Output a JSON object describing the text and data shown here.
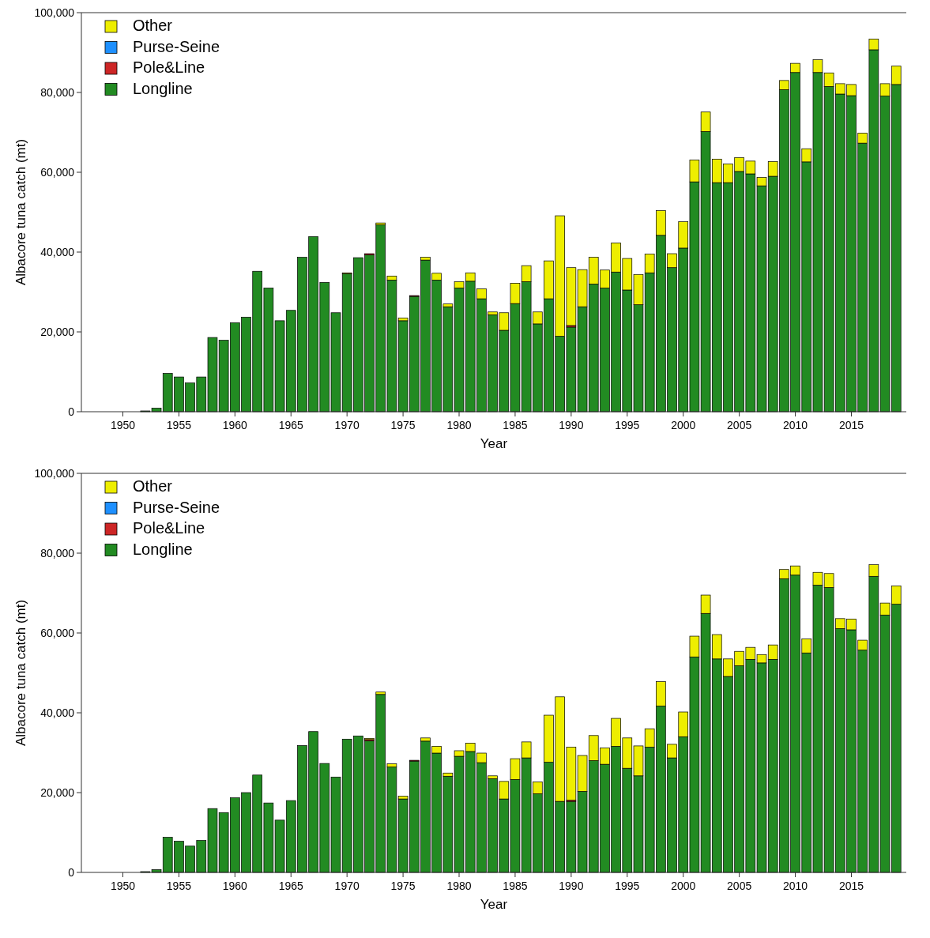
{
  "chart_data": [
    {
      "type": "bar",
      "stacked": true,
      "xlabel": "Year",
      "ylabel": "Albacore tuna catch (mt)",
      "legend": "top left",
      "x": [
        1950,
        1951,
        1952,
        1953,
        1954,
        1955,
        1956,
        1957,
        1958,
        1959,
        1960,
        1961,
        1962,
        1963,
        1964,
        1965,
        1966,
        1967,
        1968,
        1969,
        1970,
        1971,
        1972,
        1973,
        1974,
        1975,
        1976,
        1977,
        1978,
        1979,
        1980,
        1981,
        1982,
        1983,
        1984,
        1985,
        1986,
        1987,
        1988,
        1989,
        1990,
        1991,
        1992,
        1993,
        1994,
        1995,
        1996,
        1997,
        1998,
        1999,
        2000,
        2001,
        2002,
        2003,
        2004,
        2005,
        2006,
        2007,
        2008,
        2009,
        2010,
        2011,
        2012,
        2013,
        2014,
        2015,
        2016,
        2017,
        2018,
        2019
      ],
      "xlim": [
        1946.3,
        2019.9
      ],
      "xticks": [
        1950,
        1955,
        1960,
        1965,
        1970,
        1975,
        1980,
        1985,
        1990,
        1995,
        2000,
        2005,
        2010,
        2015
      ],
      "ylim": [
        0,
        100000
      ],
      "yticks": [
        0,
        {
          "value": 20000,
          "label": "20,000"
        },
        {
          "value": 40000,
          "label": "40,000"
        },
        {
          "value": 60000,
          "label": "60,000"
        },
        {
          "value": 80000,
          "label": "80,000"
        },
        {
          "value": 100000,
          "label": "100,000"
        }
      ],
      "series": [
        {
          "name": "Longline",
          "color": "#228b22",
          "values": [
            0,
            0,
            200,
            900,
            9600,
            8700,
            7200,
            8700,
            18600,
            17900,
            22300,
            23700,
            35200,
            31000,
            22800,
            25400,
            38700,
            43900,
            32400,
            24800,
            34600,
            38600,
            39300,
            46800,
            33000,
            22800,
            28900,
            38000,
            33000,
            26300,
            31000,
            32700,
            28300,
            24300,
            20400,
            27100,
            32600,
            22000,
            28300,
            18900,
            21200,
            26300,
            32000,
            31000,
            35000,
            30500,
            26800,
            34800,
            44200,
            36100,
            41000,
            57600,
            70200,
            57400,
            57400,
            60200,
            59600,
            56600,
            59000,
            80700,
            85000,
            62600,
            85000,
            81500,
            79600,
            79200,
            67300,
            90700,
            79100,
            82000
          ]
        },
        {
          "name": "Pole&Line",
          "color": "#cd2626",
          "values": [
            0,
            0,
            0,
            0,
            0,
            0,
            0,
            0,
            0,
            0,
            0,
            0,
            0,
            0,
            0,
            0,
            0,
            0,
            0,
            0,
            0,
            0,
            300,
            0,
            0,
            0,
            200,
            0,
            0,
            0,
            0,
            0,
            0,
            0,
            0,
            0,
            0,
            0,
            0,
            0,
            400,
            0,
            0,
            0,
            0,
            0,
            0,
            0,
            0,
            0,
            0,
            0,
            0,
            0,
            0,
            0,
            0,
            0,
            0,
            0,
            0,
            0,
            0,
            0,
            0,
            0,
            0,
            0,
            0,
            0
          ]
        },
        {
          "name": "Purse-Seine",
          "color": "#1e90ff",
          "values": [
            0,
            0,
            0,
            0,
            0,
            0,
            0,
            0,
            0,
            0,
            0,
            0,
            0,
            0,
            0,
            0,
            0,
            0,
            0,
            0,
            0,
            0,
            0,
            0,
            0,
            0,
            0,
            0,
            0,
            0,
            0,
            0,
            0,
            0,
            0,
            0,
            0,
            0,
            0,
            0,
            0,
            0,
            0,
            0,
            0,
            0,
            0,
            0,
            0,
            0,
            0,
            0,
            0,
            0,
            0,
            0,
            0,
            0,
            0,
            0,
            0,
            0,
            0,
            0,
            0,
            0,
            0,
            0,
            0,
            0
          ]
        },
        {
          "name": "Other",
          "color": "#eeee00",
          "values": [
            0,
            0,
            0,
            0,
            0,
            0,
            0,
            0,
            0,
            0,
            0,
            0,
            0,
            0,
            0,
            0,
            0,
            0,
            0,
            0,
            200,
            0,
            0,
            500,
            1000,
            700,
            0,
            700,
            1700,
            700,
            1600,
            2100,
            2500,
            700,
            4400,
            5100,
            4000,
            3000,
            9500,
            30200,
            14500,
            9300,
            6700,
            4500,
            7300,
            7900,
            7600,
            4700,
            6200,
            3500,
            6600,
            5500,
            4900,
            5900,
            4700,
            3500,
            3200,
            2100,
            3700,
            2300,
            2300,
            3300,
            3200,
            3400,
            2600,
            2800,
            2500,
            2700,
            3100,
            4600
          ]
        }
      ]
    },
    {
      "type": "bar",
      "stacked": true,
      "xlabel": "Year",
      "ylabel": "Albacore tuna catch (mt)",
      "legend": "top left",
      "x": [
        1950,
        1951,
        1952,
        1953,
        1954,
        1955,
        1956,
        1957,
        1958,
        1959,
        1960,
        1961,
        1962,
        1963,
        1964,
        1965,
        1966,
        1967,
        1968,
        1969,
        1970,
        1971,
        1972,
        1973,
        1974,
        1975,
        1976,
        1977,
        1978,
        1979,
        1980,
        1981,
        1982,
        1983,
        1984,
        1985,
        1986,
        1987,
        1988,
        1989,
        1990,
        1991,
        1992,
        1993,
        1994,
        1995,
        1996,
        1997,
        1998,
        1999,
        2000,
        2001,
        2002,
        2003,
        2004,
        2005,
        2006,
        2007,
        2008,
        2009,
        2010,
        2011,
        2012,
        2013,
        2014,
        2015,
        2016,
        2017,
        2018,
        2019
      ],
      "xlim": [
        1946.3,
        2019.9
      ],
      "xticks": [
        1950,
        1955,
        1960,
        1965,
        1970,
        1975,
        1980,
        1985,
        1990,
        1995,
        2000,
        2005,
        2010,
        2015
      ],
      "ylim": [
        0,
        100000
      ],
      "yticks": [
        0,
        {
          "value": 20000,
          "label": "20,000"
        },
        {
          "value": 40000,
          "label": "40,000"
        },
        {
          "value": 60000,
          "label": "60,000"
        },
        {
          "value": 80000,
          "label": "80,000"
        },
        {
          "value": 100000,
          "label": "100,000"
        }
      ],
      "series": [
        {
          "name": "Longline",
          "color": "#228b22",
          "values": [
            0,
            0,
            200,
            700,
            8800,
            7800,
            6600,
            8000,
            16000,
            15000,
            18700,
            20000,
            24400,
            17400,
            13100,
            18000,
            31800,
            35300,
            27300,
            23900,
            33400,
            34200,
            33000,
            44600,
            26400,
            18400,
            27900,
            32900,
            29900,
            24100,
            29100,
            30300,
            27500,
            23500,
            18400,
            23300,
            28700,
            19700,
            27600,
            17800,
            17800,
            20300,
            28000,
            27100,
            31600,
            26100,
            24200,
            31400,
            41700,
            28700,
            34000,
            54000,
            64900,
            53500,
            49100,
            51800,
            53400,
            52500,
            53400,
            73600,
            74500,
            55000,
            72000,
            71400,
            61100,
            60800,
            55700,
            74200,
            64500,
            67200
          ]
        },
        {
          "name": "Pole&Line",
          "color": "#cd2626",
          "values": [
            0,
            0,
            0,
            0,
            0,
            0,
            0,
            0,
            0,
            0,
            0,
            0,
            0,
            0,
            0,
            0,
            0,
            0,
            0,
            0,
            0,
            0,
            300,
            0,
            0,
            0,
            200,
            0,
            0,
            0,
            0,
            0,
            0,
            0,
            0,
            0,
            0,
            0,
            0,
            0,
            300,
            0,
            0,
            0,
            0,
            0,
            0,
            0,
            0,
            0,
            0,
            0,
            0,
            0,
            0,
            0,
            0,
            0,
            0,
            0,
            0,
            0,
            0,
            0,
            0,
            0,
            0,
            0,
            0,
            0
          ]
        },
        {
          "name": "Purse-Seine",
          "color": "#1e90ff",
          "values": [
            0,
            0,
            0,
            0,
            0,
            0,
            0,
            0,
            0,
            0,
            0,
            0,
            0,
            0,
            0,
            0,
            0,
            0,
            0,
            0,
            0,
            0,
            0,
            0,
            0,
            0,
            0,
            0,
            0,
            0,
            0,
            0,
            0,
            0,
            0,
            0,
            0,
            0,
            0,
            0,
            0,
            0,
            0,
            0,
            0,
            0,
            0,
            0,
            0,
            0,
            0,
            0,
            0,
            0,
            0,
            0,
            0,
            0,
            0,
            0,
            0,
            0,
            0,
            0,
            0,
            0,
            0,
            0,
            0,
            0
          ]
        },
        {
          "name": "Other",
          "color": "#eeee00",
          "values": [
            0,
            0,
            0,
            0,
            0,
            0,
            0,
            0,
            0,
            0,
            0,
            0,
            0,
            0,
            0,
            0,
            0,
            0,
            0,
            0,
            0,
            0,
            300,
            600,
            800,
            700,
            0,
            800,
            1700,
            800,
            1400,
            2100,
            2400,
            700,
            4400,
            5200,
            4000,
            3000,
            11800,
            26200,
            13300,
            9000,
            6300,
            4100,
            7000,
            7600,
            7500,
            4600,
            6100,
            3400,
            6200,
            5200,
            4600,
            6100,
            4400,
            3600,
            3000,
            2100,
            3600,
            2300,
            2300,
            3500,
            3200,
            3500,
            2500,
            2700,
            2500,
            2900,
            3000,
            4600
          ]
        }
      ]
    }
  ]
}
